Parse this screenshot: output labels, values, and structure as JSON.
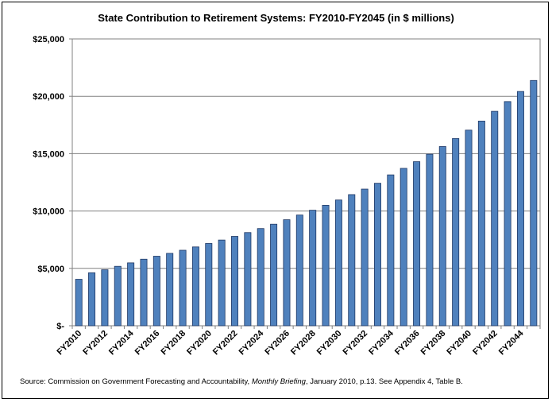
{
  "chart_data": {
    "type": "bar",
    "title": "State Contribution to Retirement Systems: FY2010-FY2045 (in $ millions)",
    "categories": [
      "FY2010",
      "FY2011",
      "FY2012",
      "FY2013",
      "FY2014",
      "FY2015",
      "FY2016",
      "FY2017",
      "FY2018",
      "FY2019",
      "FY2020",
      "FY2021",
      "FY2022",
      "FY2023",
      "FY2024",
      "FY2025",
      "FY2026",
      "FY2027",
      "FY2028",
      "FY2029",
      "FY2030",
      "FY2031",
      "FY2032",
      "FY2033",
      "FY2034",
      "FY2035",
      "FY2036",
      "FY2037",
      "FY2038",
      "FY2039",
      "FY2040",
      "FY2041",
      "FY2042",
      "FY2043",
      "FY2044",
      "FY2045"
    ],
    "visible_tick_labels": [
      "FY2010",
      "FY2012",
      "FY2014",
      "FY2016",
      "FY2018",
      "FY2020",
      "FY2022",
      "FY2024",
      "FY2026",
      "FY2028",
      "FY2030",
      "FY2032",
      "FY2034",
      "FY2036",
      "FY2038",
      "FY2040",
      "FY2042",
      "FY2044"
    ],
    "values": [
      4050,
      4620,
      4880,
      5180,
      5480,
      5800,
      6060,
      6310,
      6580,
      6870,
      7170,
      7470,
      7790,
      8120,
      8470,
      8850,
      9240,
      9650,
      10070,
      10500,
      10960,
      11430,
      11910,
      12420,
      13150,
      13720,
      14300,
      14950,
      15620,
      16320,
      17050,
      17840,
      18690,
      19540,
      20420,
      21380
    ],
    "yticks": [
      "$-",
      "$5,000",
      "$10,000",
      "$15,000",
      "$20,000",
      "$25,000"
    ],
    "ylim": [
      0,
      25000
    ],
    "xlabel": "",
    "ylabel": "",
    "grid": "horizontal",
    "bar_color": "#4f81bd",
    "bar_edge_color": "#1f3864"
  },
  "source": {
    "prefix": "Source: Commission on Government Forecasting and Accountability, ",
    "publication": "Monthly Briefing",
    "suffix": ", January 2010, p.13. See Appendix  4, Table B."
  }
}
